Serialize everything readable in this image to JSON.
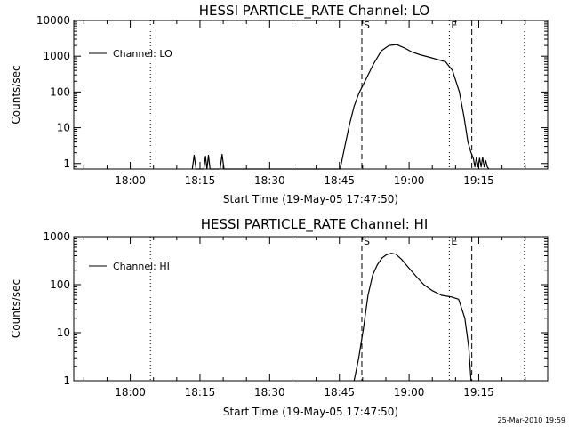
{
  "footer": "25-Mar-2010 19:59",
  "chart_data": [
    {
      "type": "line",
      "title": "HESSI PARTICLE_RATE Channel: LO",
      "xlabel": "Start Time (19-May-05 17:47:50)",
      "ylabel": "Counts/sec",
      "yscale": "log",
      "ylim": [
        0.7,
        10000
      ],
      "xlim": [
        "17:47:50",
        "19:29:50"
      ],
      "xticks": [
        "18:00",
        "18:15",
        "18:30",
        "18:45",
        "19:00",
        "19:15"
      ],
      "yticks": [
        "1",
        "10",
        "100",
        "1000",
        "10000"
      ],
      "legend": "Channel: LO",
      "legend_position": "top-left",
      "markers": [
        {
          "label": "S",
          "time": "18:49:50",
          "style": "dashed"
        },
        {
          "label": "E",
          "time": "19:08:40",
          "style": "dotted"
        },
        {
          "label": "",
          "time": "19:13:30",
          "style": "dashed"
        },
        {
          "label": "",
          "time": "18:04:20",
          "style": "dotted"
        },
        {
          "label": "",
          "time": "19:24:50",
          "style": "dotted"
        }
      ],
      "series": [
        {
          "name": "Channel: LO",
          "x": [
            "18:13:20",
            "18:13:45",
            "18:14:10",
            "18:15:50",
            "18:16:10",
            "18:16:30",
            "18:16:50",
            "18:17:10",
            "18:17:30",
            "18:19:20",
            "18:19:45",
            "18:20:10",
            "18:45:10",
            "18:46:10",
            "18:47:10",
            "18:48:10",
            "18:49:10",
            "18:50:40",
            "18:52:20",
            "18:54:00",
            "18:55:40",
            "18:57:20",
            "18:59:00",
            "19:00:40",
            "19:02:20",
            "19:04:50",
            "19:07:50",
            "19:09:20",
            "19:10:50",
            "19:11:50",
            "19:12:40",
            "19:13:20",
            "19:13:50",
            "19:14:10",
            "19:14:30",
            "19:14:50",
            "19:15:10",
            "19:15:30",
            "19:15:50",
            "19:16:10",
            "19:16:30",
            "19:16:50",
            "19:17:10"
          ],
          "values": [
            0.7,
            1.7,
            0.7,
            0.7,
            1.6,
            0.7,
            1.7,
            0.7,
            0.7,
            0.7,
            1.8,
            0.7,
            0.7,
            3,
            12,
            40,
            90,
            220,
            600,
            1400,
            2000,
            2100,
            1700,
            1300,
            1100,
            900,
            700,
            400,
            100,
            20,
            4,
            2,
            1.4,
            0.8,
            1.5,
            0.8,
            1.4,
            0.8,
            1.5,
            0.8,
            1.2,
            0.8,
            0.7
          ]
        }
      ]
    },
    {
      "type": "line",
      "title": "HESSI PARTICLE_RATE Channel: HI",
      "xlabel": "Start Time (19-May-05 17:47:50)",
      "ylabel": "Counts/sec",
      "yscale": "log",
      "ylim": [
        1,
        1000
      ],
      "xlim": [
        "17:47:50",
        "19:29:50"
      ],
      "xticks": [
        "18:00",
        "18:15",
        "18:30",
        "18:45",
        "19:00",
        "19:15"
      ],
      "yticks": [
        "1",
        "10",
        "100",
        "1000"
      ],
      "legend": "Channel: HI",
      "legend_position": "top-left",
      "markers": [
        {
          "label": "S",
          "time": "18:49:50",
          "style": "dashed"
        },
        {
          "label": "E",
          "time": "19:08:40",
          "style": "dotted"
        },
        {
          "label": "",
          "time": "19:13:30",
          "style": "dashed"
        },
        {
          "label": "",
          "time": "18:04:20",
          "style": "dotted"
        },
        {
          "label": "",
          "time": "19:24:50",
          "style": "dotted"
        }
      ],
      "series": [
        {
          "name": "Channel: HI",
          "x": [
            "18:48:10",
            "18:49:10",
            "18:50:10",
            "18:51:10",
            "18:52:10",
            "18:53:10",
            "18:54:10",
            "18:55:10",
            "18:56:10",
            "18:57:10",
            "18:58:20",
            "18:59:50",
            "19:01:30",
            "19:03:10",
            "19:05:00",
            "19:07:00",
            "19:09:00",
            "19:10:40",
            "19:12:00",
            "19:12:50",
            "19:13:20"
          ],
          "values": [
            1,
            3,
            12,
            60,
            160,
            260,
            360,
            420,
            450,
            430,
            340,
            230,
            150,
            100,
            75,
            60,
            56,
            50,
            20,
            5,
            1
          ]
        }
      ]
    }
  ]
}
